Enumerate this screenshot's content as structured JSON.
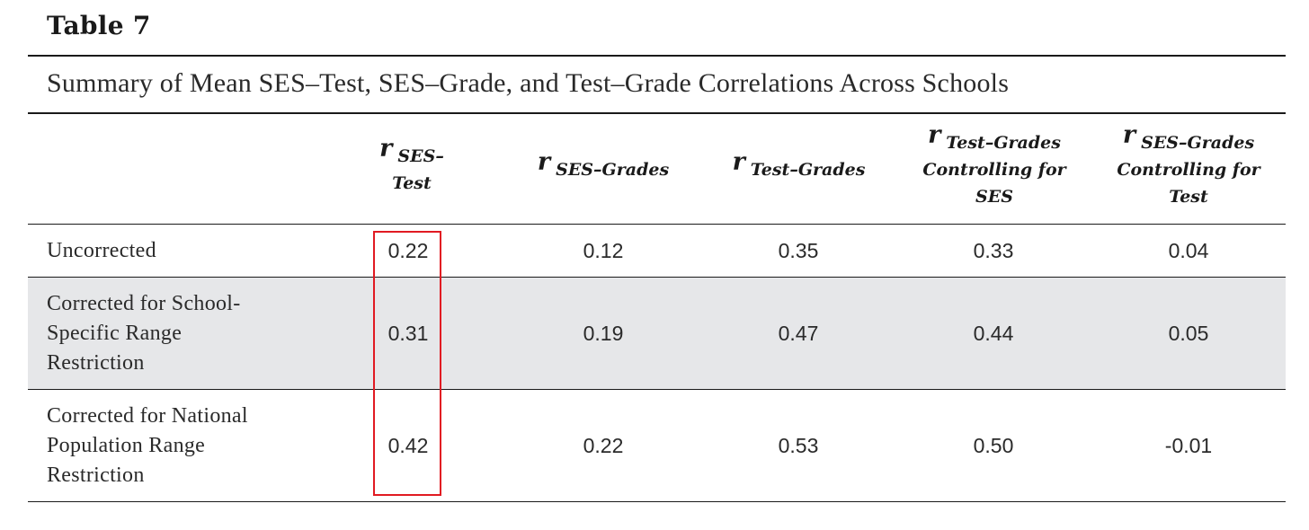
{
  "table_label": "Table 7",
  "caption": "Summary of Mean SES–Test, SES–Grade, and Test–Grade Correlations Across Schools",
  "columns": [
    {
      "symbol": "r",
      "lines": [
        "SES–Test"
      ]
    },
    {
      "symbol": "r",
      "lines": [
        "SES–Grades"
      ]
    },
    {
      "symbol": "r",
      "lines": [
        "Test–Grades"
      ]
    },
    {
      "symbol": "r",
      "lines": [
        "Test–Grades",
        "Controlling for",
        "SES"
      ]
    },
    {
      "symbol": "r",
      "lines": [
        "SES–Grades",
        "Controlling for",
        "Test"
      ]
    }
  ],
  "rows": [
    {
      "label": [
        "Uncorrected"
      ],
      "values": [
        "0.22",
        "0.12",
        "0.35",
        "0.33",
        "0.04"
      ],
      "shaded": false
    },
    {
      "label": [
        "Corrected for School-",
        "Specific Range",
        "Restriction"
      ],
      "values": [
        "0.31",
        "0.19",
        "0.47",
        "0.44",
        "0.05"
      ],
      "shaded": true
    },
    {
      "label": [
        "Corrected for National",
        "Population Range",
        "Restriction"
      ],
      "values": [
        "0.42",
        "0.22",
        "0.53",
        "0.50",
        "-0.01"
      ],
      "shaded": false
    }
  ],
  "highlight": {
    "column": "SES–Test",
    "color": "#e11a22"
  },
  "colors": {
    "shaded_row": "#e6e7e9",
    "rules": "#1a1a1a"
  }
}
